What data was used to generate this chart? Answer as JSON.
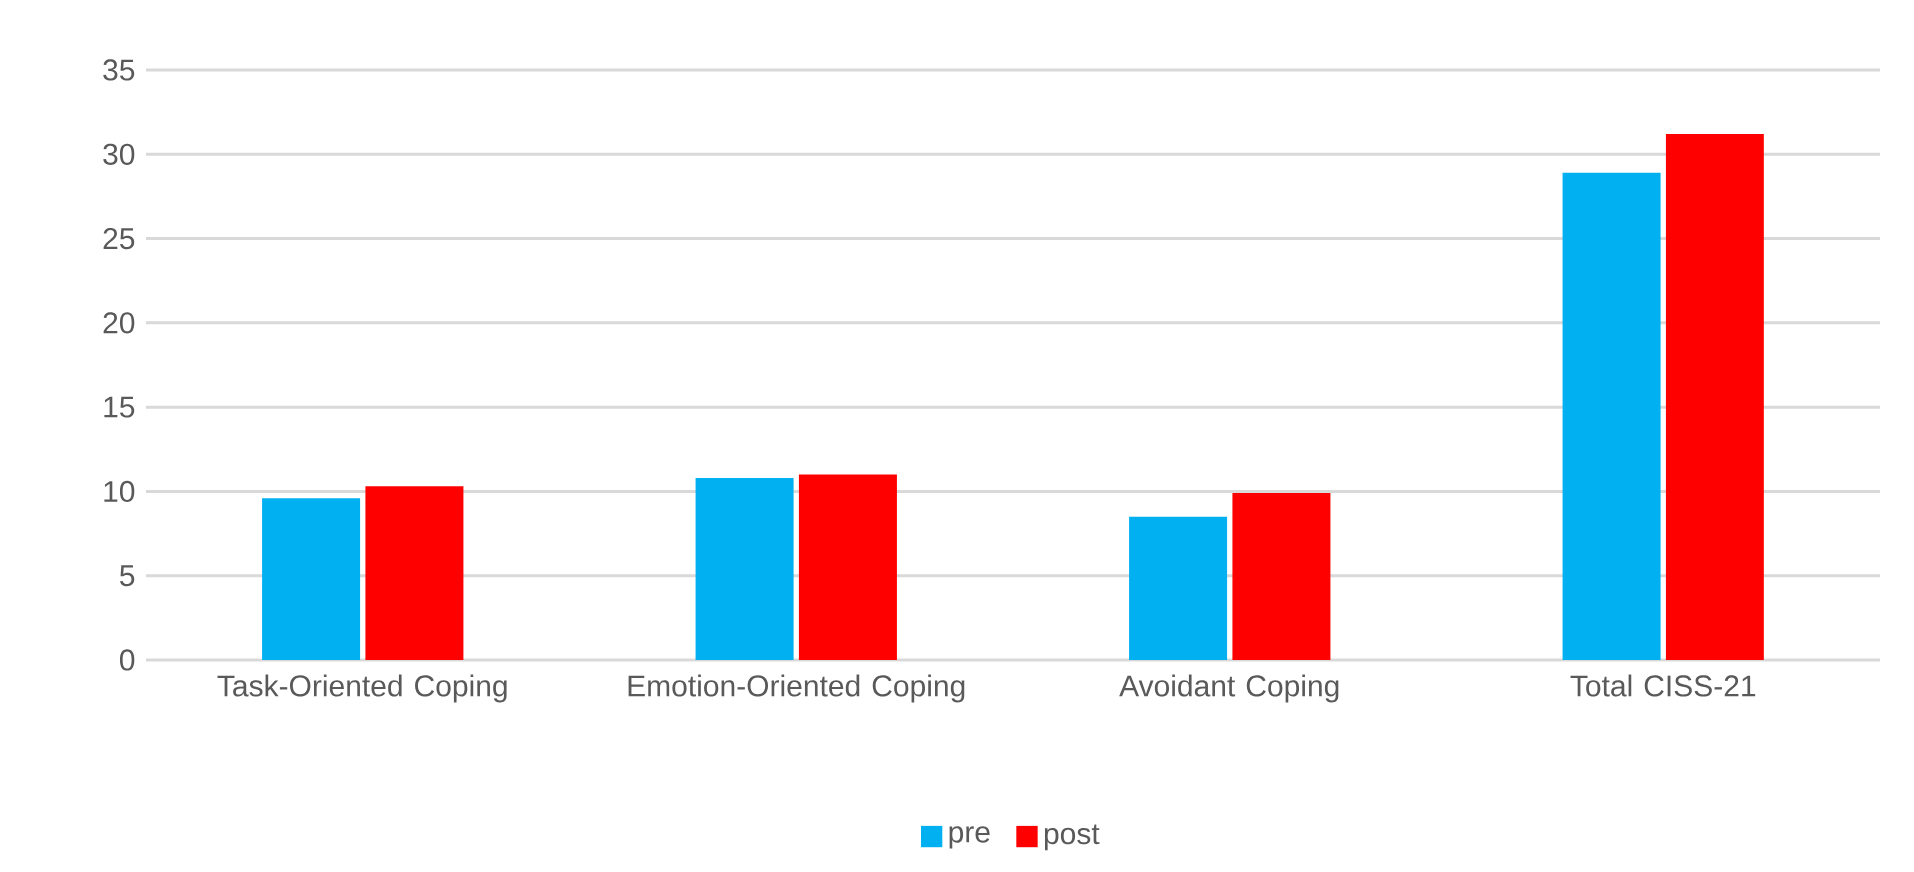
{
  "chart_data": {
    "type": "bar",
    "categories": [
      "Task-Oriented Coping",
      "Emotion-Oriented Coping",
      "Avoidant Coping",
      "Total CISS-21"
    ],
    "series": [
      {
        "name": "pre",
        "color": "#00b0f0",
        "values": [
          9.6,
          10.8,
          8.5,
          28.9
        ]
      },
      {
        "name": "post",
        "color": "#ff0000",
        "values": [
          10.3,
          11.0,
          9.9,
          31.2
        ]
      }
    ],
    "ylim": [
      0,
      35
    ],
    "yticks": [
      0,
      5,
      10,
      15,
      20,
      25,
      30,
      35
    ],
    "grid": "y",
    "legend": "bottom"
  }
}
